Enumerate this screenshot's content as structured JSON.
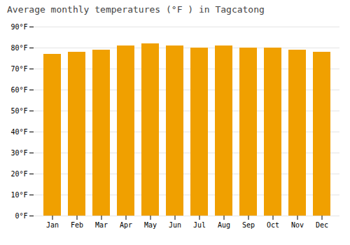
{
  "chart_data": {
    "type": "bar",
    "title": "Average monthly temperatures (°F ) in Tagcatong",
    "categories": [
      "Jan",
      "Feb",
      "Mar",
      "Apr",
      "May",
      "Jun",
      "Jul",
      "Aug",
      "Sep",
      "Oct",
      "Nov",
      "Dec"
    ],
    "values": [
      77,
      78,
      79,
      81,
      82,
      81,
      80,
      81,
      80,
      80,
      79,
      78
    ],
    "color": "#F0A000",
    "ylim": [
      0,
      90
    ],
    "yticks": [
      {
        "value": 0,
        "label": "0°F"
      },
      {
        "value": 10,
        "label": "10°F"
      },
      {
        "value": 20,
        "label": "20°F"
      },
      {
        "value": 30,
        "label": "30°F"
      },
      {
        "value": 40,
        "label": "40°F"
      },
      {
        "value": 50,
        "label": "50°F"
      },
      {
        "value": 60,
        "label": "60°F"
      },
      {
        "value": 70,
        "label": "70°F"
      },
      {
        "value": 80,
        "label": "80°F"
      },
      {
        "value": 90,
        "label": "90°F"
      }
    ],
    "grid": true
  }
}
